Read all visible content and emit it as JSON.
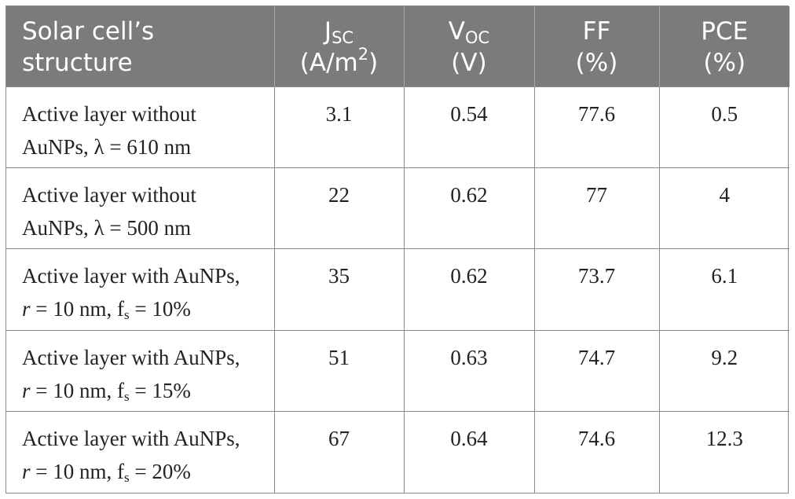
{
  "header": {
    "col1_line1": "Solar cell’s",
    "col1_line2": "structure",
    "jsc_symbol": "J",
    "jsc_sub": "SC",
    "jsc_unit_open": "(A/m",
    "jsc_unit_sup": "2",
    "jsc_unit_close": ")",
    "voc_symbol": "V",
    "voc_sub": "OC",
    "voc_unit": "(V)",
    "ff_label": "FF",
    "ff_unit": "(%)",
    "pce_label": "PCE",
    "pce_unit": "(%)"
  },
  "rows": [
    {
      "line1": "Active layer without",
      "line2_prefix": "AuNPs, λ  =  610 nm",
      "jsc": "3.1",
      "voc": "0.54",
      "ff": "77.6",
      "pce": "0.5"
    },
    {
      "line1": "Active layer without",
      "line2_prefix": "AuNPs, λ  =  500 nm",
      "jsc": "22",
      "voc": "0.62",
      "ff": "77",
      "pce": "4"
    },
    {
      "line1": "Active layer with AuNPs,",
      "r": "r",
      "line2_mid": " = 10 nm, f",
      "fs_sub": "s",
      "line2_end": " = 10%",
      "jsc": "35",
      "voc": "0.62",
      "ff": "73.7",
      "pce": "6.1"
    },
    {
      "line1": "Active layer with AuNPs,",
      "r": "r",
      "line2_mid": " = 10 nm, f",
      "fs_sub": "s",
      "line2_end": " = 15%",
      "jsc": "51",
      "voc": "0.63",
      "ff": "74.7",
      "pce": "9.2"
    },
    {
      "line1": "Active layer with AuNPs,",
      "r": "r",
      "line2_mid": " = 10 nm, f",
      "fs_sub": "s",
      "line2_end": " = 20%",
      "jsc": "67",
      "voc": "0.64",
      "ff": "74.6",
      "pce": "12.3"
    }
  ]
}
